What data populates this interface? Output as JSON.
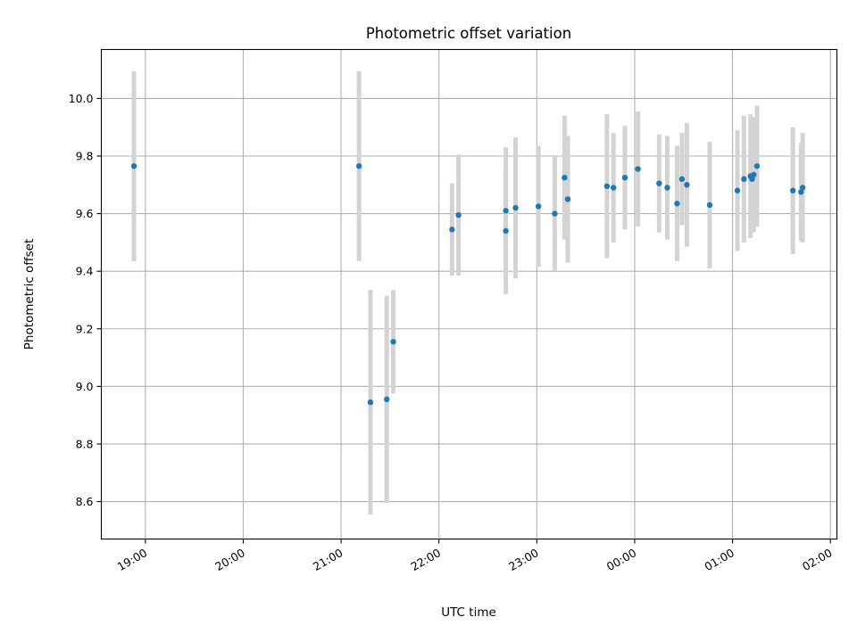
{
  "chart_data": {
    "type": "scatter",
    "title": "Photometric offset variation",
    "xlabel": "UTC time",
    "ylabel": "Photometric offset",
    "x_ticks": [
      "19:00",
      "20:00",
      "21:00",
      "22:00",
      "23:00",
      "00:00",
      "01:00",
      "02:00"
    ],
    "y_ticks": [
      "8.6",
      "8.8",
      "9.0",
      "9.2",
      "9.4",
      "9.6",
      "9.8",
      "10.0"
    ],
    "x_range": [
      "18:33",
      "02:04"
    ],
    "ylim": [
      8.47,
      10.17
    ],
    "grid": true,
    "point_color": "#1f77b4",
    "errorbar_color": "#d3d3d3",
    "points": [
      {
        "x": "18:53",
        "y": 9.765,
        "err": 0.33
      },
      {
        "x": "21:11",
        "y": 9.765,
        "err": 0.33
      },
      {
        "x": "21:18",
        "y": 8.945,
        "err": 0.39
      },
      {
        "x": "21:28",
        "y": 8.955,
        "err": 0.36
      },
      {
        "x": "21:32",
        "y": 9.155,
        "err": 0.18
      },
      {
        "x": "22:08",
        "y": 9.545,
        "err": 0.16
      },
      {
        "x": "22:12",
        "y": 9.595,
        "err": 0.21
      },
      {
        "x": "22:41",
        "y": 9.61,
        "err": 0.22
      },
      {
        "x": "22:41",
        "y": 9.54,
        "err": 0.22
      },
      {
        "x": "22:47",
        "y": 9.62,
        "err": 0.245
      },
      {
        "x": "23:01",
        "y": 9.625,
        "err": 0.21
      },
      {
        "x": "23:11",
        "y": 9.6,
        "err": 0.2
      },
      {
        "x": "23:17",
        "y": 9.725,
        "err": 0.215
      },
      {
        "x": "23:19",
        "y": 9.65,
        "err": 0.22
      },
      {
        "x": "23:43",
        "y": 9.695,
        "err": 0.25
      },
      {
        "x": "23:47",
        "y": 9.69,
        "err": 0.19
      },
      {
        "x": "23:54",
        "y": 9.725,
        "err": 0.18
      },
      {
        "x": "00:02",
        "y": 9.755,
        "err": 0.2
      },
      {
        "x": "00:15",
        "y": 9.705,
        "err": 0.17
      },
      {
        "x": "00:20",
        "y": 9.69,
        "err": 0.18
      },
      {
        "x": "00:26",
        "y": 9.635,
        "err": 0.2
      },
      {
        "x": "00:29",
        "y": 9.72,
        "err": 0.16
      },
      {
        "x": "00:32",
        "y": 9.7,
        "err": 0.215
      },
      {
        "x": "00:46",
        "y": 9.63,
        "err": 0.22
      },
      {
        "x": "01:03",
        "y": 9.68,
        "err": 0.21
      },
      {
        "x": "01:07",
        "y": 9.72,
        "err": 0.22
      },
      {
        "x": "01:11",
        "y": 9.73,
        "err": 0.215
      },
      {
        "x": "01:12",
        "y": 9.72,
        "err": 0.18
      },
      {
        "x": "01:13",
        "y": 9.735,
        "err": 0.2
      },
      {
        "x": "01:15",
        "y": 9.765,
        "err": 0.21
      },
      {
        "x": "01:37",
        "y": 9.68,
        "err": 0.22
      },
      {
        "x": "01:42",
        "y": 9.675,
        "err": 0.17
      },
      {
        "x": "01:43",
        "y": 9.69,
        "err": 0.19
      }
    ]
  }
}
